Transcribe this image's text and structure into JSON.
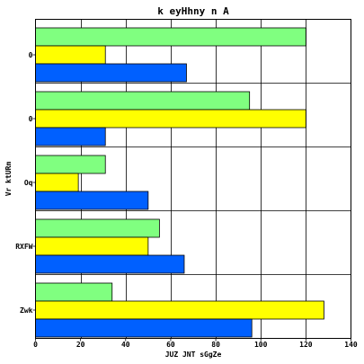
{
  "chart_data": {
    "type": "bar",
    "orientation": "horizontal",
    "title": "k  eyHhny n  A",
    "xlabel": "JUZ JNT sGgZe",
    "ylabel": "Vr ktURm",
    "categories": [
      "0",
      "0",
      "Oq",
      "RXFW",
      "Zwk"
    ],
    "series": [
      {
        "color": "#80ff80",
        "values": [
          120,
          95,
          31,
          55,
          34
        ]
      },
      {
        "color": "#ffff00",
        "values": [
          31,
          120,
          19,
          50,
          128
        ]
      },
      {
        "color": "#0060ff",
        "values": [
          67,
          31,
          50,
          66,
          96
        ]
      }
    ],
    "xlim": [
      0,
      140
    ],
    "xticks": [
      0,
      20,
      40,
      60,
      80,
      100,
      120,
      140
    ],
    "grid": true,
    "legend": "none"
  }
}
